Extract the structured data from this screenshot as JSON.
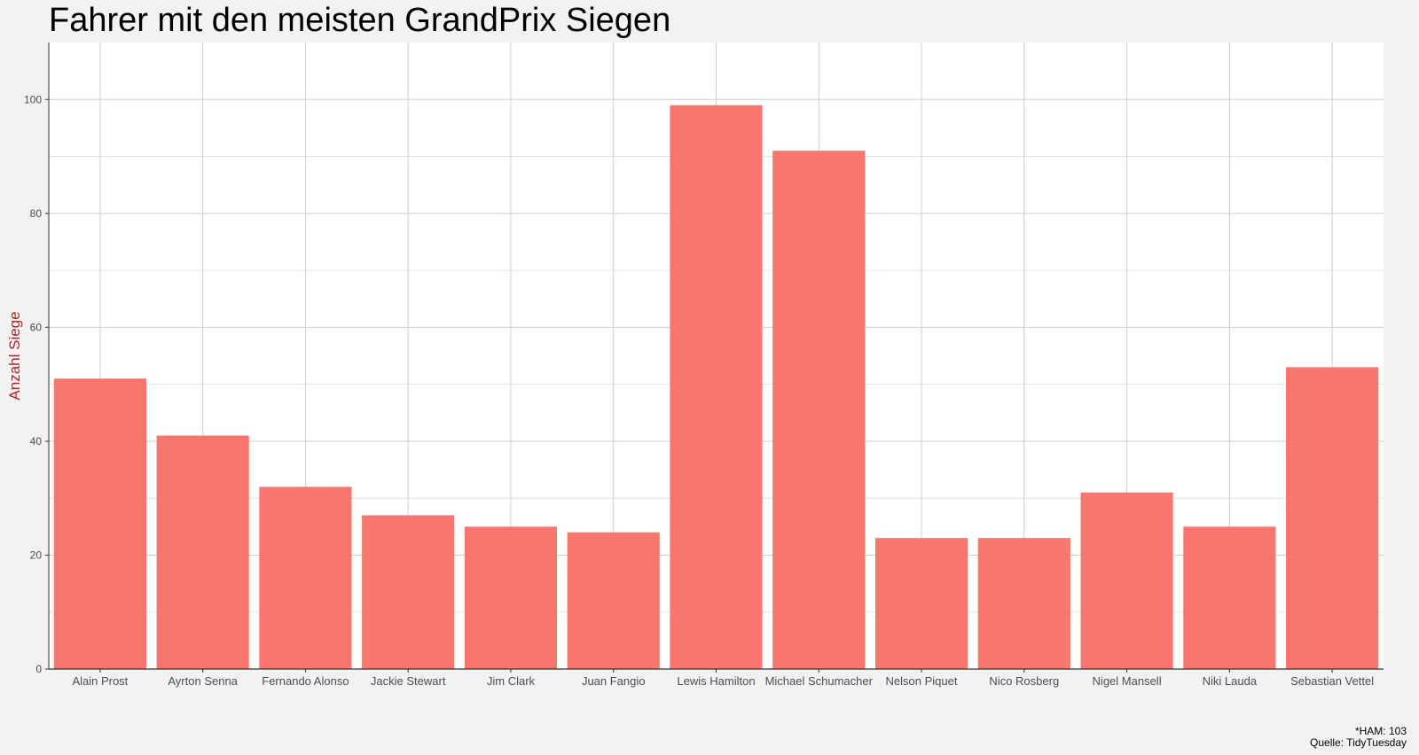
{
  "chart_data": {
    "type": "bar",
    "title": "Fahrer mit den meisten GrandPrix Siegen",
    "xlabel": "",
    "ylabel": "Anzahl Siege",
    "categories": [
      "Alain Prost",
      "Ayrton Senna",
      "Fernando Alonso",
      "Jackie Stewart",
      "Jim Clark",
      "Juan Fangio",
      "Lewis Hamilton",
      "Michael Schumacher",
      "Nelson Piquet",
      "Nico Rosberg",
      "Nigel Mansell",
      "Niki Lauda",
      "Sebastian Vettel"
    ],
    "values": [
      51,
      41,
      32,
      27,
      25,
      24,
      99,
      91,
      23,
      23,
      31,
      25,
      53
    ],
    "ylim": [
      0,
      110
    ],
    "yticks": [
      0,
      20,
      40,
      60,
      80,
      100
    ],
    "grid": true,
    "bar_color": "#f8766d",
    "ylabel_color": "#b22222",
    "captions": [
      "*HAM: 103",
      "Quelle: TidyTuesday"
    ]
  }
}
